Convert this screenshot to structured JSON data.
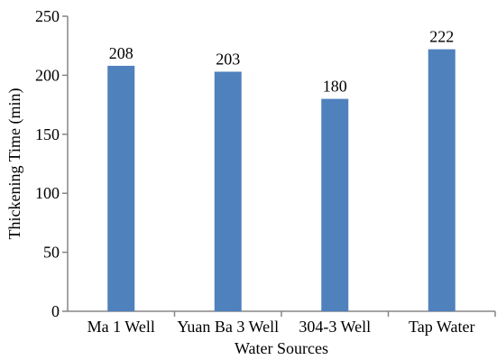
{
  "chart_data": {
    "type": "bar",
    "categories": [
      "Ma 1 Well",
      "Yuan Ba 3 Well",
      "304-3 Well",
      "Tap Water"
    ],
    "values": [
      208,
      203,
      180,
      222
    ],
    "data_labels": [
      "208",
      "203",
      "180",
      "222"
    ],
    "xlabel": "Water Sources",
    "ylabel": "Thickening Time (min)",
    "ylim": [
      0,
      250
    ],
    "yticks": [
      0,
      50,
      100,
      150,
      200,
      250
    ],
    "ytick_labels": [
      "0",
      "50",
      "100",
      "150",
      "200",
      "250"
    ],
    "grid": false,
    "bar_color": "#4F81BD",
    "axis_color": "#868686"
  }
}
